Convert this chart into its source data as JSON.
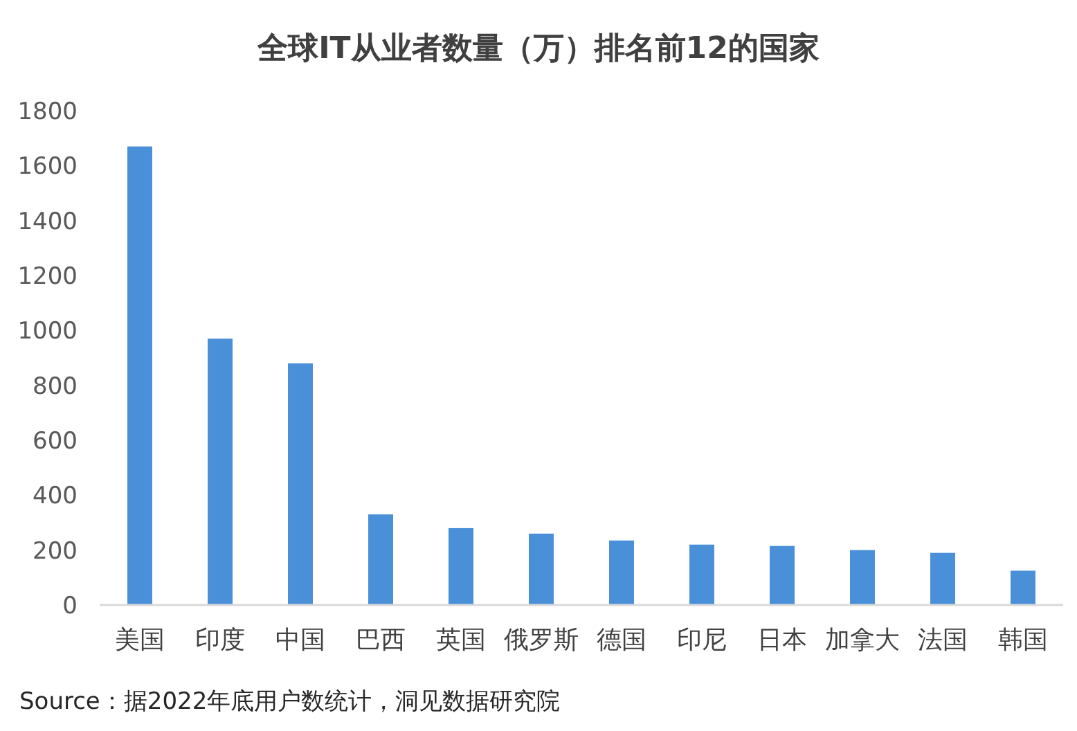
{
  "chart_data": {
    "type": "bar",
    "title": "全球IT从业者数量（万）排名前12的国家",
    "categories": [
      "美国",
      "印度",
      "中国",
      "巴西",
      "英国",
      "俄罗斯",
      "德国",
      "印尼",
      "日本",
      "加拿大",
      "法国",
      "韩国"
    ],
    "values": [
      1670,
      970,
      880,
      330,
      280,
      260,
      235,
      220,
      215,
      200,
      190,
      125
    ],
    "color": "#4a90d9",
    "ylim": [
      0,
      1800
    ],
    "yticks": [
      0,
      200,
      400,
      600,
      800,
      1000,
      1200,
      1400,
      1600,
      1800
    ],
    "grid": false,
    "annotations": [
      "Source：据2022年底用户数统计，洞见数据研究院"
    ]
  }
}
